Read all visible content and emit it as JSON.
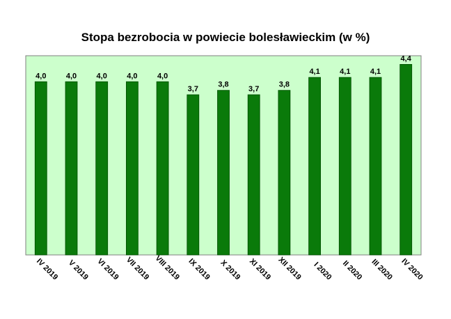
{
  "chart_data": {
    "type": "bar",
    "title": "Stopa bezrobocia w powiecie bolesławieckim (w %)",
    "categories": [
      "IV 2019",
      "V 2019",
      "VI 2019",
      "VII 2019",
      "VIII 2019",
      "IX 2019",
      "X 2019",
      "XI 2019",
      "XII 2019",
      "I 2020",
      "II 2020",
      "III 2020",
      "IV 2020"
    ],
    "values": [
      4.0,
      4.0,
      4.0,
      4.0,
      4.0,
      3.7,
      3.8,
      3.7,
      3.8,
      4.1,
      4.1,
      4.1,
      4.4
    ],
    "value_labels": [
      "4,0",
      "4,0",
      "4,0",
      "4,0",
      "4,0",
      "3,7",
      "3,8",
      "3,7",
      "3,8",
      "4,1",
      "4,1",
      "4,1",
      "4,4"
    ],
    "xlabel": "",
    "ylabel": "",
    "ylim": [
      0,
      4.6
    ],
    "grid": false,
    "colors": {
      "bar": "#0a7a0a",
      "bar_edge": "#004d00",
      "plot_bg": "#ccffcc",
      "plot_border": "#7f7f7f"
    }
  }
}
